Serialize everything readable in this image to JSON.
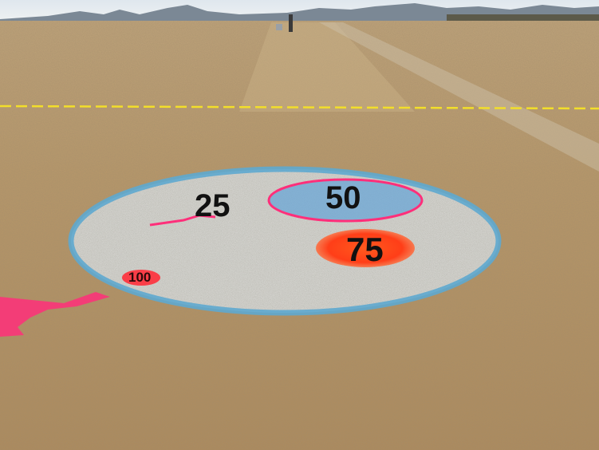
{
  "photo": {
    "sky_color": "#e6ecf0",
    "mountain_color": "#7a8794",
    "field_color": "#b7976a",
    "dry_grass_light": "#cdb188",
    "dry_grass_dark": "#8a6a45",
    "tape_color": "#f2de2a",
    "circle_paint_color": "#5ea9cf",
    "circle_fill_color": "#b9b8b2",
    "marker_pink": "#ff2f7a",
    "marker_orange": "#ff4a1c"
  },
  "labels": {
    "zone_25": "25",
    "zone_50": "50",
    "zone_75": "75",
    "zone_100": "100"
  }
}
